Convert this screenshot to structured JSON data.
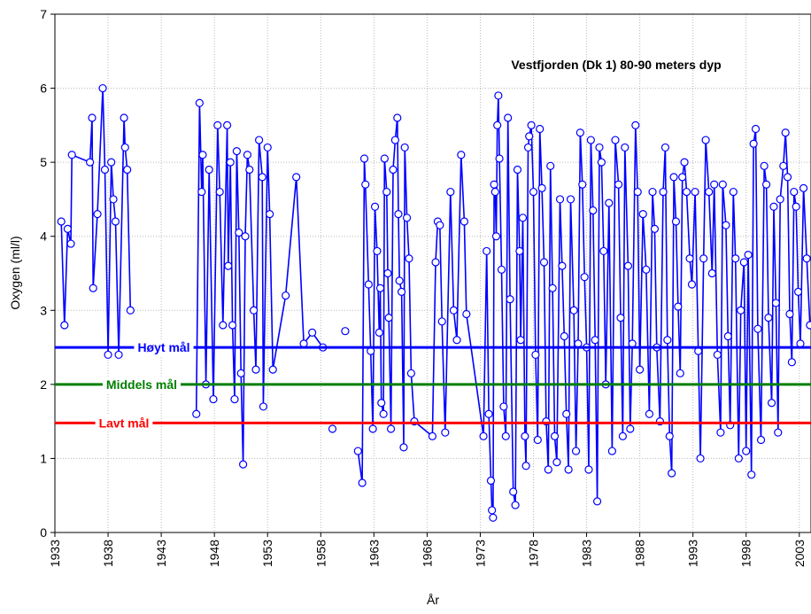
{
  "chart_data": {
    "type": "line",
    "title": "Vestfjorden (Dk 1) 80-90 meters dyp",
    "x_label": "År",
    "y_label": "Oxygen (ml/l)",
    "xlim": [
      1933,
      2004.1
    ],
    "ylim": [
      0,
      7
    ],
    "xticks": [
      1933,
      1938,
      1943,
      1948,
      1953,
      1958,
      1963,
      1968,
      1973,
      1978,
      1983,
      1988,
      1993,
      1998,
      2003
    ],
    "yticks": [
      0,
      1,
      2,
      3,
      4,
      5,
      6,
      7
    ],
    "grid": true,
    "reference_lines": [
      {
        "name": "Høyt mål",
        "value": 2.5,
        "color": "#0000ff"
      },
      {
        "name": "Middels mål",
        "value": 2.0,
        "color": "#008000"
      },
      {
        "name": "Lavt mål",
        "value": 1.48,
        "color": "#ff0000"
      }
    ],
    "series": [
      {
        "name": "Oxygen",
        "color": "#0000ff",
        "x": [
          1933.6,
          1933.9,
          1934.2,
          1934.5,
          1934.6,
          1936.3,
          1936.5,
          1936.6,
          1937.0,
          1937.5,
          1937.7,
          1938.0,
          1938.3,
          1938.5,
          1938.7,
          1939.0,
          1939.5,
          1939.6,
          1939.8,
          1940.1,
          1946.0,
          1946.3,
          1946.6,
          1946.8,
          1946.9,
          1947.2,
          1947.5,
          1947.9,
          1948.3,
          1948.5,
          1948.8,
          1949.2,
          1949.3,
          1949.5,
          1949.7,
          1949.9,
          1950.1,
          1950.3,
          1950.5,
          1950.7,
          1950.9,
          1951.1,
          1951.3,
          1951.7,
          1951.9,
          1952.2,
          1952.5,
          1952.6,
          1953.0,
          1953.2,
          1953.5,
          1954.7,
          1955.7,
          1956.4,
          1957.2,
          1958.2,
          1958.7,
          1959.1,
          1959.5,
          1960.3,
          1960.8,
          1961.5,
          1961.9,
          1962.1,
          1962.2,
          1962.5,
          1962.7,
          1962.9,
          1963.1,
          1963.3,
          1963.5,
          1963.6,
          1963.7,
          1963.9,
          1964.0,
          1964.2,
          1964.3,
          1964.4,
          1964.6,
          1964.8,
          1965.0,
          1965.2,
          1965.3,
          1965.4,
          1965.6,
          1965.8,
          1965.9,
          1966.1,
          1966.3,
          1966.5,
          1966.8,
          1968.5,
          1968.8,
          1969.0,
          1969.2,
          1969.4,
          1969.7,
          1970.2,
          1970.5,
          1970.8,
          1971.2,
          1971.5,
          1971.7,
          1973.3,
          1973.6,
          1973.8,
          1974.0,
          1974.1,
          1974.2,
          1974.3,
          1974.4,
          1974.5,
          1974.6,
          1974.7,
          1974.8,
          1975.0,
          1975.2,
          1975.4,
          1975.6,
          1975.8,
          1976.1,
          1976.3,
          1976.5,
          1976.7,
          1976.8,
          1977.0,
          1977.2,
          1977.3,
          1977.5,
          1977.6,
          1977.8,
          1978.0,
          1978.2,
          1978.4,
          1978.6,
          1978.8,
          1979.0,
          1979.2,
          1979.4,
          1979.6,
          1979.8,
          1980.0,
          1980.2,
          1980.5,
          1980.7,
          1980.9,
          1981.1,
          1981.3,
          1981.5,
          1981.8,
          1982.0,
          1982.2,
          1982.4,
          1982.6,
          1982.8,
          1983.0,
          1983.2,
          1983.4,
          1983.6,
          1983.8,
          1984.0,
          1984.2,
          1984.4,
          1984.6,
          1984.8,
          1985.1,
          1985.4,
          1985.7,
          1986.0,
          1986.2,
          1986.4,
          1986.6,
          1986.9,
          1987.1,
          1987.3,
          1987.6,
          1987.8,
          1988.0,
          1988.3,
          1988.6,
          1988.9,
          1989.2,
          1989.4,
          1989.6,
          1989.9,
          1990.2,
          1990.4,
          1990.6,
          1990.8,
          1991.0,
          1991.2,
          1991.4,
          1991.6,
          1991.8,
          1992.0,
          1992.2,
          1992.4,
          1992.7,
          1992.9,
          1993.2,
          1993.5,
          1993.7,
          1994.0,
          1994.2,
          1994.5,
          1994.8,
          1995.0,
          1995.3,
          1995.6,
          1995.8,
          1996.1,
          1996.3,
          1996.5,
          1996.8,
          1997.0,
          1997.3,
          1997.5,
          1997.8,
          1998.0,
          1998.2,
          1998.5,
          1998.7,
          1998.9,
          1999.1,
          1999.4,
          1999.7,
          1999.9,
          2000.1,
          2000.4,
          2000.6,
          2000.8,
          2001.0,
          2001.2,
          2001.5,
          2001.7,
          2001.9,
          2002.1,
          2002.3,
          2002.5,
          2002.7,
          2002.9,
          2003.1,
          2003.4,
          2003.7,
          2004.0
        ],
        "values": [
          4.2,
          2.8,
          4.1,
          3.9,
          5.1,
          5.0,
          5.6,
          3.3,
          4.3,
          6.0,
          4.9,
          2.4,
          5.0,
          4.5,
          4.2,
          2.4,
          5.6,
          5.2,
          4.9,
          3.0,
          null,
          1.6,
          5.8,
          4.6,
          5.1,
          2.0,
          4.9,
          1.8,
          5.5,
          4.6,
          2.8,
          5.5,
          3.6,
          5.0,
          2.8,
          1.8,
          5.15,
          4.05,
          2.15,
          0.92,
          4.0,
          5.1,
          4.9,
          3.0,
          2.2,
          5.3,
          4.8,
          1.7,
          5.2,
          4.3,
          2.2,
          3.2,
          4.8,
          2.55,
          2.7,
          2.5,
          null,
          1.4,
          null,
          2.72,
          null,
          1.1,
          0.67,
          5.05,
          4.7,
          3.35,
          2.45,
          1.4,
          4.4,
          3.8,
          2.7,
          3.3,
          1.75,
          1.6,
          5.05,
          4.6,
          3.5,
          2.9,
          1.4,
          4.9,
          5.3,
          5.6,
          4.3,
          3.4,
          3.25,
          1.15,
          5.2,
          4.25,
          3.7,
          2.15,
          1.5,
          1.3,
          3.65,
          4.2,
          4.15,
          2.85,
          1.35,
          4.6,
          3.0,
          2.6,
          5.1,
          4.2,
          2.95,
          1.3,
          3.8,
          1.6,
          0.7,
          0.3,
          0.2,
          4.7,
          4.6,
          4.0,
          5.5,
          5.9,
          5.05,
          3.55,
          1.7,
          1.3,
          5.6,
          3.15,
          0.55,
          0.37,
          4.9,
          3.8,
          2.6,
          4.25,
          1.3,
          0.9,
          5.2,
          5.35,
          5.5,
          4.6,
          2.4,
          1.25,
          5.45,
          4.65,
          3.65,
          1.5,
          0.85,
          4.95,
          3.3,
          1.3,
          0.95,
          4.5,
          3.6,
          2.65,
          1.6,
          0.85,
          4.5,
          3.0,
          1.1,
          2.55,
          5.4,
          4.7,
          3.45,
          2.5,
          0.85,
          5.3,
          4.35,
          2.6,
          0.42,
          5.2,
          5.0,
          3.8,
          2.0,
          4.45,
          1.1,
          5.3,
          4.7,
          2.9,
          1.3,
          5.2,
          3.6,
          1.4,
          2.55,
          5.5,
          4.6,
          2.2,
          4.3,
          3.55,
          1.6,
          4.6,
          4.1,
          2.5,
          1.5,
          4.6,
          5.2,
          2.6,
          1.3,
          0.8,
          4.8,
          4.2,
          3.05,
          2.15,
          4.8,
          5.0,
          4.6,
          3.7,
          3.35,
          4.6,
          2.45,
          1.0,
          3.7,
          5.3,
          4.6,
          3.5,
          4.7,
          2.4,
          1.35,
          4.7,
          4.15,
          2.65,
          1.45,
          4.6,
          3.7,
          1.0,
          3.0,
          3.65,
          1.1,
          3.75,
          0.78,
          5.25,
          5.45,
          2.75,
          1.25,
          4.95,
          4.7,
          2.9,
          1.75,
          4.4,
          3.1,
          1.35,
          4.5,
          4.95,
          5.4,
          4.8,
          2.95,
          2.3,
          4.6,
          4.4,
          3.25,
          2.55,
          4.65,
          3.7,
          2.8
        ]
      }
    ]
  }
}
